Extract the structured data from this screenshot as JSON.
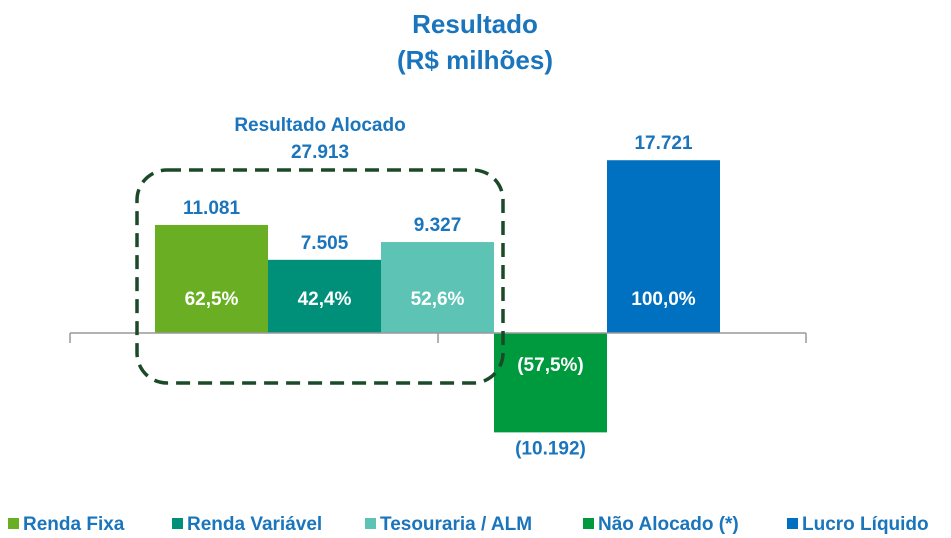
{
  "chart_data": {
    "type": "bar",
    "title": "Resultado",
    "subtitle": "(R$ milhões)",
    "annotation": {
      "title": "Resultado Alocado",
      "value": 27913,
      "label": "27.913"
    },
    "ylim": [
      -12000,
      20000
    ],
    "series": [
      {
        "name": "Renda Fixa",
        "color": "#6aaf23",
        "values": [
          11081
        ],
        "value_labels": [
          "11.081"
        ],
        "shares": [
          62.5
        ],
        "share_labels": [
          "62,5%"
        ]
      },
      {
        "name": "Renda Variável",
        "color": "#00907a",
        "values": [
          7505
        ],
        "value_labels": [
          "7.505"
        ],
        "shares": [
          42.4
        ],
        "share_labels": [
          "42,4%"
        ]
      },
      {
        "name": "Tesouraria / ALM",
        "color": "#5cc3b5",
        "values": [
          9327
        ],
        "value_labels": [
          "9.327"
        ],
        "shares": [
          52.6
        ],
        "share_labels": [
          "52,6%"
        ]
      },
      {
        "name": "Não Alocado (*)",
        "color": "#009a3e",
        "values": [
          -10192
        ],
        "value_labels": [
          "(10.192)"
        ],
        "shares": [
          -57.5
        ],
        "share_labels": [
          "(57,5%)"
        ]
      },
      {
        "name": "Lucro Líquido",
        "color": "#0070c0",
        "values": [
          17721
        ],
        "value_labels": [
          "17.721"
        ],
        "shares": [
          100
        ],
        "share_labels": [
          "100,0%"
        ]
      }
    ]
  }
}
